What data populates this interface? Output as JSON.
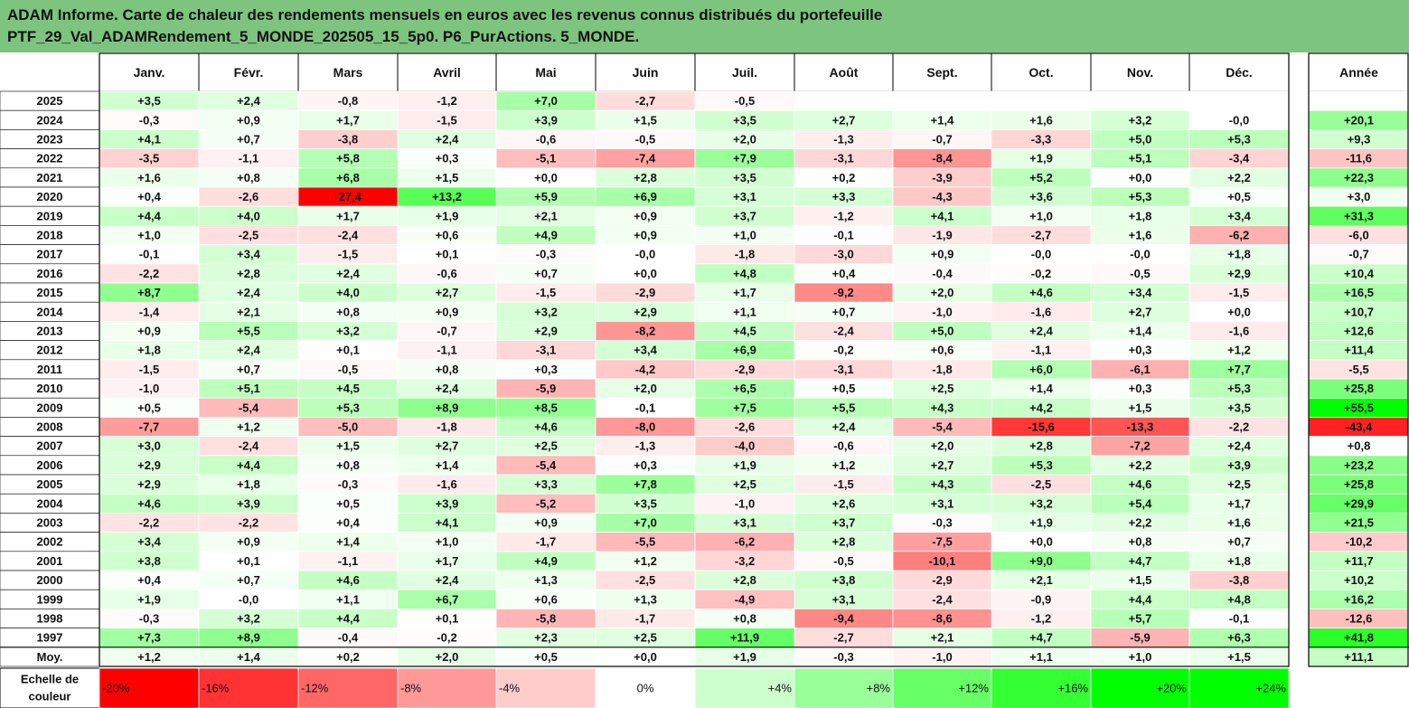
{
  "title": {
    "line1": "ADAM Informe. Carte de chaleur des rendements mensuels en euros avec les revenus connus distribués du portefeuille",
    "line2": "PTF_29_Val_ADAMRendement_5_MONDE_202505_15_5p0. P6_PurActions. 5_MONDE."
  },
  "colors": {
    "title_bg": "#7dc47f",
    "negative_max": "#ff0000",
    "positive_max": "#00ff00",
    "neutral": "#ffffff"
  },
  "chart_data": {
    "type": "heatmap",
    "columns": [
      "Janv.",
      "Févr.",
      "Mars",
      "Avril",
      "Mai",
      "Juin",
      "Juil.",
      "Août",
      "Sept.",
      "Oct.",
      "Nov.",
      "Déc."
    ],
    "annual_column": "Année",
    "rows": [
      {
        "year": "2025",
        "values": [
          "+3,5",
          "+2,4",
          "-0,8",
          "-1,2",
          "+7,0",
          "-2,7",
          "-0,5",
          "",
          "",
          "",
          "",
          ""
        ],
        "annual": ""
      },
      {
        "year": "2024",
        "values": [
          "-0,3",
          "+0,9",
          "+1,7",
          "-1,5",
          "+3,9",
          "+1,5",
          "+3,5",
          "+2,7",
          "+1,4",
          "+1,6",
          "+3,2",
          "-0,0"
        ],
        "annual": "+20,1"
      },
      {
        "year": "2023",
        "values": [
          "+4,1",
          "+0,7",
          "-3,8",
          "+2,4",
          "-0,6",
          "-0,5",
          "+2,0",
          "-1,3",
          "-0,7",
          "-3,3",
          "+5,0",
          "+5,3"
        ],
        "annual": "+9,3"
      },
      {
        "year": "2022",
        "values": [
          "-3,5",
          "-1,1",
          "+5,8",
          "+0,3",
          "-5,1",
          "-7,4",
          "+7,9",
          "-3,1",
          "-8,4",
          "+1,9",
          "+5,1",
          "-3,4"
        ],
        "annual": "-11,6"
      },
      {
        "year": "2021",
        "values": [
          "+1,6",
          "+0,8",
          "+6,8",
          "+1,5",
          "+0,0",
          "+2,8",
          "+3,5",
          "+0,2",
          "-3,9",
          "+5,2",
          "+0,0",
          "+2,2"
        ],
        "annual": "+22,3"
      },
      {
        "year": "2020",
        "values": [
          "+0,4",
          "-2,6",
          "-27,4",
          "+13,2",
          "+5,9",
          "+6,9",
          "+3,1",
          "+3,3",
          "-4,3",
          "+3,6",
          "+5,3",
          "+0,5"
        ],
        "annual": "+3,0"
      },
      {
        "year": "2019",
        "values": [
          "+4,4",
          "+4,0",
          "+1,7",
          "+1,9",
          "+2,1",
          "+0,9",
          "+3,7",
          "-1,2",
          "+4,1",
          "+1,0",
          "+1,8",
          "+3,4"
        ],
        "annual": "+31,3"
      },
      {
        "year": "2018",
        "values": [
          "+1,0",
          "-2,5",
          "-2,4",
          "+0,6",
          "+4,9",
          "+0,9",
          "+1,0",
          "-0,1",
          "-1,9",
          "-2,7",
          "+1,6",
          "-6,2"
        ],
        "annual": "-6,0"
      },
      {
        "year": "2017",
        "values": [
          "-0,1",
          "+3,4",
          "-1,5",
          "+0,1",
          "-0,3",
          "-0,0",
          "-1,8",
          "-3,0",
          "+0,9",
          "-0,0",
          "-0,0",
          "+1,8"
        ],
        "annual": "-0,7"
      },
      {
        "year": "2016",
        "values": [
          "-2,2",
          "+2,8",
          "+2,4",
          "-0,6",
          "+0,7",
          "+0,0",
          "+4,8",
          "+0,4",
          "-0,4",
          "-0,2",
          "-0,5",
          "+2,9"
        ],
        "annual": "+10,4"
      },
      {
        "year": "2015",
        "values": [
          "+8,7",
          "+2,4",
          "+4,0",
          "+2,7",
          "-1,5",
          "-2,9",
          "+1,7",
          "-9,2",
          "+2,0",
          "+4,6",
          "+3,4",
          "-1,5"
        ],
        "annual": "+16,5"
      },
      {
        "year": "2014",
        "values": [
          "-1,4",
          "+2,1",
          "+0,8",
          "+0,9",
          "+3,2",
          "+2,9",
          "+1,1",
          "+0,7",
          "-1,0",
          "-1,6",
          "+2,7",
          "+0,0"
        ],
        "annual": "+10,7"
      },
      {
        "year": "2013",
        "values": [
          "+0,9",
          "+5,5",
          "+3,2",
          "-0,7",
          "+2,9",
          "-8,2",
          "+4,5",
          "-2,4",
          "+5,0",
          "+2,4",
          "+1,4",
          "-1,6"
        ],
        "annual": "+12,6"
      },
      {
        "year": "2012",
        "values": [
          "+1,8",
          "+2,4",
          "+0,1",
          "-1,1",
          "-3,1",
          "+3,4",
          "+6,9",
          "-0,2",
          "+0,6",
          "-1,1",
          "+0,3",
          "+1,2"
        ],
        "annual": "+11,4"
      },
      {
        "year": "2011",
        "values": [
          "-1,5",
          "+0,7",
          "-0,5",
          "+0,8",
          "+0,3",
          "-4,2",
          "-2,9",
          "-3,1",
          "-1,8",
          "+6,0",
          "-6,1",
          "+7,7"
        ],
        "annual": "-5,5"
      },
      {
        "year": "2010",
        "values": [
          "-1,0",
          "+5,1",
          "+4,5",
          "+2,4",
          "-5,9",
          "+2,0",
          "+6,5",
          "+0,5",
          "+2,5",
          "+1,4",
          "+0,3",
          "+5,3"
        ],
        "annual": "+25,8"
      },
      {
        "year": "2009",
        "values": [
          "+0,5",
          "-5,4",
          "+5,3",
          "+8,9",
          "+8,5",
          "-0,1",
          "+7,5",
          "+5,5",
          "+4,3",
          "+4,2",
          "+1,5",
          "+3,5"
        ],
        "annual": "+55,5"
      },
      {
        "year": "2008",
        "values": [
          "-7,7",
          "+1,2",
          "-5,0",
          "-1,8",
          "+4,6",
          "-8,0",
          "-2,6",
          "+2,4",
          "-5,4",
          "-15,6",
          "-13,3",
          "-2,2"
        ],
        "annual": "-43,4"
      },
      {
        "year": "2007",
        "values": [
          "+3,0",
          "-2,4",
          "+1,5",
          "+2,7",
          "+2,5",
          "-1,3",
          "-4,0",
          "-0,6",
          "+2,0",
          "+2,8",
          "-7,2",
          "+2,4"
        ],
        "annual": "+0,8"
      },
      {
        "year": "2006",
        "values": [
          "+2,9",
          "+4,4",
          "+0,8",
          "+1,4",
          "-5,4",
          "+0,3",
          "+1,9",
          "+1,2",
          "+2,7",
          "+5,3",
          "+2,2",
          "+3,9"
        ],
        "annual": "+23,2"
      },
      {
        "year": "2005",
        "values": [
          "+2,9",
          "+1,8",
          "-0,3",
          "-1,6",
          "+3,3",
          "+7,8",
          "+2,5",
          "-1,5",
          "+4,3",
          "-2,5",
          "+4,6",
          "+2,5"
        ],
        "annual": "+25,8"
      },
      {
        "year": "2004",
        "values": [
          "+4,6",
          "+3,9",
          "+0,5",
          "+3,9",
          "-5,2",
          "+3,5",
          "-1,0",
          "+2,6",
          "+3,1",
          "+3,2",
          "+5,4",
          "+1,7"
        ],
        "annual": "+29,9"
      },
      {
        "year": "2003",
        "values": [
          "-2,2",
          "-2,2",
          "+0,4",
          "+4,1",
          "+0,9",
          "+7,0",
          "+3,1",
          "+3,7",
          "-0,3",
          "+1,9",
          "+2,2",
          "+1,6"
        ],
        "annual": "+21,5"
      },
      {
        "year": "2002",
        "values": [
          "+3,4",
          "+0,9",
          "+1,4",
          "+1,0",
          "-1,7",
          "-5,5",
          "-6,2",
          "+2,8",
          "-7,5",
          "+0,0",
          "+0,8",
          "+0,7"
        ],
        "annual": "-10,2"
      },
      {
        "year": "2001",
        "values": [
          "+3,8",
          "+0,1",
          "-1,1",
          "+1,7",
          "+4,9",
          "+1,2",
          "-3,2",
          "-0,5",
          "-10,1",
          "+9,0",
          "+4,7",
          "+1,8"
        ],
        "annual": "+11,7"
      },
      {
        "year": "2000",
        "values": [
          "+0,4",
          "+0,7",
          "+4,6",
          "+2,4",
          "+1,3",
          "-2,5",
          "+2,8",
          "+3,8",
          "-2,9",
          "+2,1",
          "+1,5",
          "-3,8"
        ],
        "annual": "+10,2"
      },
      {
        "year": "1999",
        "values": [
          "+1,9",
          "-0,0",
          "+1,1",
          "+6,7",
          "+0,6",
          "+1,3",
          "-4,9",
          "+3,1",
          "-2,4",
          "-0,9",
          "+4,4",
          "+4,8"
        ],
        "annual": "+16,2"
      },
      {
        "year": "1998",
        "values": [
          "-0,3",
          "+3,2",
          "+4,4",
          "+0,1",
          "-5,8",
          "-1,7",
          "+0,8",
          "-9,4",
          "-8,6",
          "-1,2",
          "+5,7",
          "-0,1"
        ],
        "annual": "-12,6"
      },
      {
        "year": "1997",
        "values": [
          "+7,3",
          "+8,9",
          "-0,4",
          "-0,2",
          "+2,3",
          "+2,5",
          "+11,9",
          "-2,7",
          "+2,1",
          "+4,7",
          "-5,9",
          "+6,3"
        ],
        "annual": "+41,8"
      }
    ],
    "average_row": {
      "label": "Moy.",
      "values": [
        "+1,2",
        "+1,4",
        "+0,2",
        "+2,0",
        "+0,5",
        "+0,0",
        "+1,9",
        "-0,3",
        "-1,0",
        "+1,1",
        "+1,0",
        "+1,5"
      ],
      "annual": "+11,1"
    },
    "color_scale": {
      "label_line1": "Echelle de",
      "label_line2": "couleur",
      "steps": [
        "-20%",
        "-16%",
        "-12%",
        "-8%",
        "-4%",
        "0%",
        "+4%",
        "+8%",
        "+12%",
        "+16%",
        "+20%",
        "+24%"
      ],
      "step_values": [
        -20,
        -16,
        -12,
        -8,
        -4,
        0,
        4,
        8,
        12,
        16,
        20,
        24
      ]
    }
  }
}
